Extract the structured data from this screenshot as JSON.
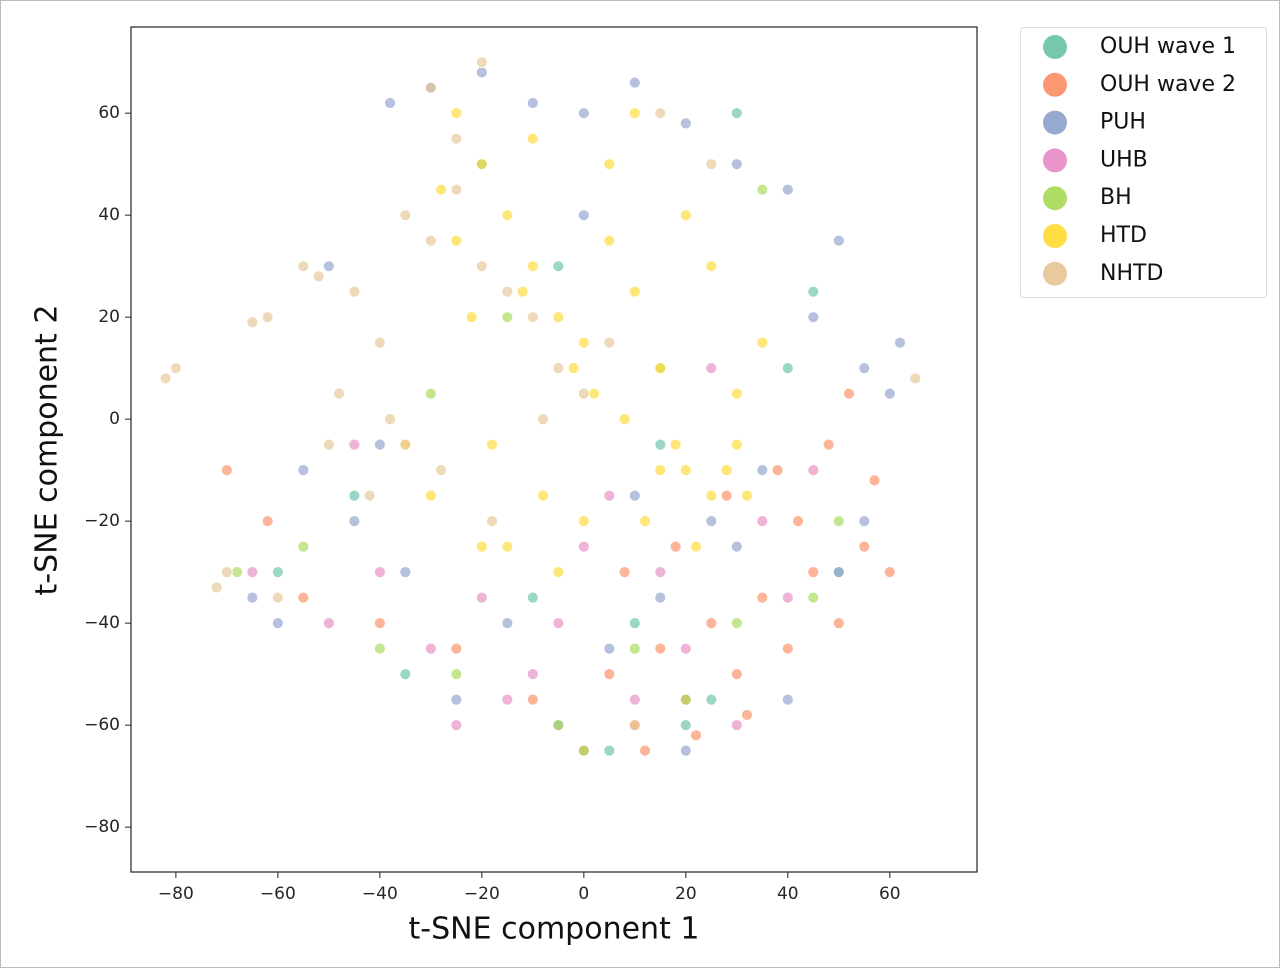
{
  "chart_data": {
    "type": "scatter",
    "xlabel": "t-SNE component 1",
    "ylabel": "t-SNE component 2",
    "xlim": [
      -88.8,
      77.1
    ],
    "ylim": [
      -88.8,
      76.9
    ],
    "xticks": [
      {
        "value": -80,
        "label": "−80"
      },
      {
        "value": -60,
        "label": "−60"
      },
      {
        "value": -40,
        "label": "−40"
      },
      {
        "value": -20,
        "label": "−20"
      },
      0,
      20,
      40,
      60
    ],
    "yticks": [
      {
        "value": -80,
        "label": "−80"
      },
      {
        "value": -60,
        "label": "−60"
      },
      {
        "value": -40,
        "label": "−40"
      },
      {
        "value": -20,
        "label": "−20"
      },
      0,
      20,
      40,
      60
    ],
    "legend": "outside-upper-right",
    "series": [
      {
        "name": "OUH wave 1",
        "color": "#66c2a5",
        "x": [
          -20,
          -5,
          10,
          25,
          40,
          50,
          -35,
          -60,
          5,
          30,
          15,
          -45,
          45,
          20,
          -10
        ],
        "values": [
          50,
          30,
          -40,
          -55,
          10,
          -30,
          -50,
          -30,
          -65,
          60,
          -5,
          -15,
          25,
          -60,
          -35
        ]
      },
      {
        "name": "OUH wave 2",
        "color": "#fc8d62",
        "x": [
          5,
          10,
          15,
          20,
          25,
          30,
          35,
          40,
          45,
          50,
          55,
          12,
          22,
          32,
          42,
          8,
          18,
          28,
          38,
          48,
          -70,
          -62,
          -55,
          -40,
          -25,
          -10,
          0,
          57,
          60,
          52
        ],
        "values": [
          -50,
          -60,
          -45,
          -55,
          -40,
          -50,
          -35,
          -45,
          -30,
          -40,
          -25,
          -65,
          -62,
          -58,
          -20,
          -30,
          -25,
          -15,
          -10,
          -5,
          -10,
          -20,
          -35,
          -40,
          -45,
          -55,
          -65,
          -12,
          -30,
          5
        ]
      },
      {
        "name": "PUH",
        "color": "#8da0cb",
        "x": [
          -30,
          -20,
          -10,
          0,
          10,
          20,
          30,
          40,
          50,
          -38,
          45,
          55,
          60,
          35,
          25,
          -45,
          -55,
          -60,
          -65,
          -15,
          5,
          15,
          -35,
          -25,
          -5,
          20,
          40,
          50,
          30,
          10,
          -40,
          55,
          62,
          0,
          -50
        ],
        "values": [
          65,
          68,
          62,
          60,
          66,
          58,
          50,
          45,
          35,
          62,
          20,
          10,
          5,
          -10,
          -20,
          -20,
          -10,
          -40,
          -35,
          -40,
          -45,
          -35,
          -30,
          -55,
          -60,
          -65,
          -55,
          -30,
          -25,
          -15,
          -5,
          -20,
          15,
          40,
          30
        ]
      },
      {
        "name": "UHB",
        "color": "#e78ac3",
        "x": [
          -50,
          -40,
          -30,
          -20,
          -10,
          0,
          10,
          20,
          30,
          40,
          -65,
          -25,
          -5,
          15,
          35,
          45,
          -45,
          25,
          5,
          -15
        ],
        "values": [
          -40,
          -30,
          -45,
          -35,
          -50,
          -25,
          -55,
          -45,
          -60,
          -35,
          -30,
          -60,
          -40,
          -30,
          -20,
          -10,
          -5,
          10,
          -15,
          -55
        ]
      },
      {
        "name": "BH",
        "color": "#a6d854",
        "x": [
          -68,
          -40,
          -25,
          -5,
          0,
          10,
          20,
          30,
          45,
          -30,
          50,
          15,
          -15,
          35,
          -55
        ],
        "values": [
          -30,
          -45,
          -50,
          -60,
          -65,
          -45,
          -55,
          -40,
          -35,
          5,
          -20,
          10,
          20,
          45,
          -25
        ]
      },
      {
        "name": "HTD",
        "color": "#ffd92f",
        "x": [
          -25,
          -20,
          -15,
          -10,
          -5,
          0,
          5,
          10,
          15,
          20,
          25,
          30,
          -28,
          -22,
          -12,
          -2,
          8,
          18,
          28,
          -18,
          -8,
          2,
          12,
          22,
          32,
          -30,
          -15,
          0,
          15,
          30,
          -25,
          -10,
          5,
          20,
          35,
          -5,
          10,
          -20,
          25,
          -35
        ],
        "values": [
          60,
          50,
          40,
          30,
          20,
          15,
          35,
          25,
          10,
          -10,
          -15,
          -5,
          45,
          20,
          25,
          10,
          0,
          -5,
          -10,
          -5,
          -15,
          5,
          -20,
          -25,
          -15,
          -15,
          -25,
          -20,
          -10,
          5,
          35,
          55,
          50,
          40,
          15,
          -30,
          60,
          -25,
          30,
          -5
        ]
      },
      {
        "name": "NHTD",
        "color": "#e5c494",
        "x": [
          -82,
          -80,
          -65,
          -62,
          -55,
          -52,
          -45,
          -40,
          -35,
          -30,
          -25,
          -20,
          -15,
          -10,
          -5,
          0,
          5,
          -38,
          -28,
          -18,
          -8,
          -48,
          -42,
          -70,
          -72,
          -60,
          -35,
          -25,
          -30,
          -20,
          15,
          25,
          -50,
          10,
          65
        ],
        "values": [
          8,
          10,
          19,
          20,
          30,
          28,
          25,
          15,
          40,
          35,
          45,
          30,
          25,
          20,
          10,
          5,
          15,
          0,
          -10,
          -20,
          0,
          5,
          -15,
          -30,
          -33,
          -35,
          -5,
          55,
          65,
          70,
          60,
          50,
          -5,
          -60,
          8
        ]
      }
    ]
  }
}
